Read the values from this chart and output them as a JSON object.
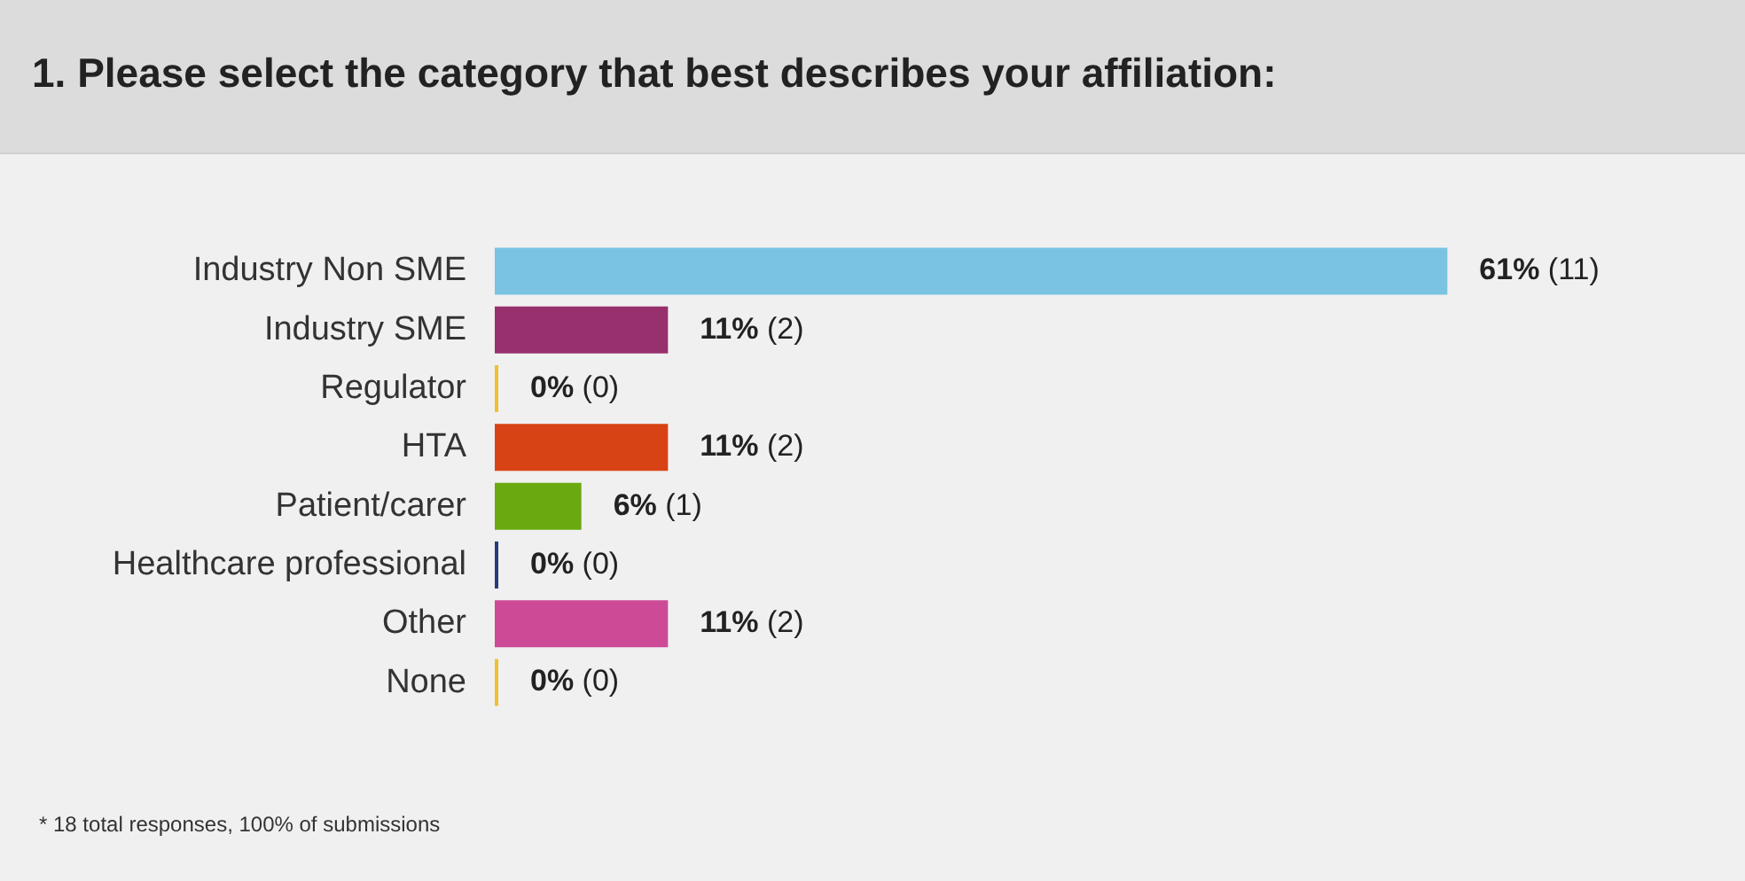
{
  "chart_data": {
    "type": "bar",
    "orientation": "horizontal",
    "title": "1. Please select the category that best describes your affiliation:",
    "categories": [
      "Industry Non SME",
      "Industry SME",
      "Regulator",
      "HTA",
      "Patient/carer",
      "Healthcare professional",
      "Other",
      "None"
    ],
    "values": [
      11,
      2,
      0,
      2,
      1,
      0,
      2,
      0
    ],
    "colors": [
      "#7ac3e3",
      "#98306e",
      "#f0c030",
      "#d84315",
      "#6aaa10",
      "#2a3a7a",
      "#cc4a96",
      "#f0c030"
    ],
    "value_labels": [
      "61% (11)",
      "11% (2)",
      "0% (0)",
      "11% (2)",
      "6% (1)",
      "0% (0)",
      "11% (2)",
      "0% (0)"
    ],
    "grid": false,
    "legend": false,
    "annotations": [
      "* 18 total responses, 100% of submissions"
    ]
  }
}
